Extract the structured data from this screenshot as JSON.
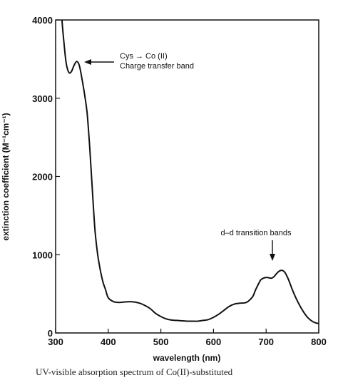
{
  "chart_data": {
    "type": "line",
    "xlabel": "wavelength (nm)",
    "ylabel": "extinction coefficient (M⁻¹cm⁻¹)",
    "xlim": [
      300,
      800
    ],
    "ylim": [
      0,
      4000
    ],
    "x_ticks": [
      300,
      400,
      500,
      600,
      700,
      800
    ],
    "y_ticks": [
      0,
      1000,
      2000,
      3000,
      4000
    ],
    "grid": false,
    "annotations": [
      {
        "line1": "Cys → Co (II)",
        "line2": "Charge transfer band",
        "x": 340,
        "y": 3480
      },
      {
        "text": "d–d transition bands",
        "x": 712,
        "y": 720
      }
    ],
    "series": [
      {
        "x": [
          312,
          316,
          320,
          325,
          330,
          335,
          340,
          345,
          350,
          355,
          360,
          365,
          370,
          375,
          380,
          385,
          390,
          395,
          400,
          410,
          420,
          430,
          440,
          450,
          460,
          470,
          480,
          490,
          500,
          510,
          520,
          530,
          540,
          550,
          560,
          570,
          580,
          590,
          600,
          610,
          620,
          630,
          640,
          650,
          660,
          665,
          670,
          675,
          680,
          685,
          690,
          695,
          700,
          705,
          710,
          715,
          720,
          725,
          730,
          735,
          740,
          745,
          750,
          760,
          770,
          780,
          790,
          800
        ],
        "values": [
          4000,
          3700,
          3450,
          3330,
          3340,
          3420,
          3470,
          3420,
          3250,
          3050,
          2800,
          2350,
          1800,
          1300,
          1000,
          800,
          650,
          550,
          450,
          400,
          390,
          395,
          400,
          395,
          380,
          350,
          310,
          250,
          210,
          180,
          165,
          160,
          155,
          150,
          150,
          150,
          160,
          170,
          200,
          240,
          290,
          340,
          370,
          380,
          385,
          400,
          430,
          470,
          550,
          620,
          680,
          700,
          710,
          705,
          700,
          720,
          760,
          790,
          800,
          780,
          720,
          640,
          550,
          400,
          280,
          190,
          140,
          120
        ]
      }
    ]
  },
  "caption": "UV-visible absorption spectrum of Co(II)-substituted"
}
